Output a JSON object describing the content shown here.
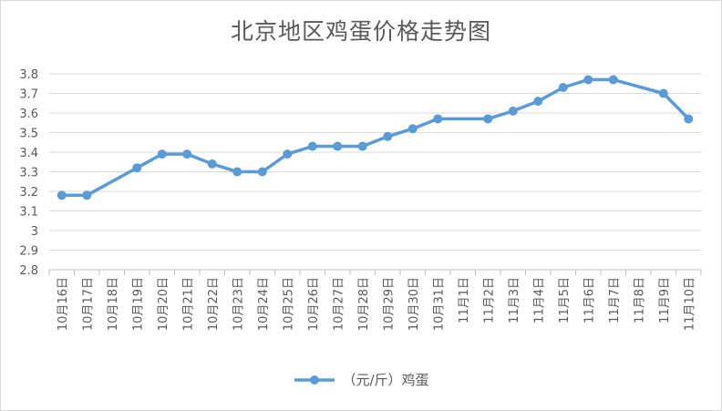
{
  "chart_data": {
    "type": "line",
    "title": "北京地区鸡蛋价格走势图",
    "xlabel": "",
    "ylabel": "",
    "categories": [
      "10月16日",
      "10月17日",
      "10月18日",
      "10月19日",
      "10月20日",
      "10月21日",
      "10月22日",
      "10月23日",
      "10月24日",
      "10月25日",
      "10月26日",
      "10月27日",
      "10月28日",
      "10月29日",
      "10月30日",
      "10月31日",
      "11月1日",
      "11月2日",
      "11月3日",
      "11月4日",
      "11月5日",
      "11月6日",
      "11月7日",
      "11月8日",
      "11月9日",
      "11月10日"
    ],
    "series": [
      {
        "name": "（元/斤）鸡蛋",
        "color": "#5b9bd5",
        "values": [
          3.18,
          3.18,
          null,
          3.32,
          3.39,
          3.39,
          3.34,
          3.3,
          3.3,
          3.39,
          3.43,
          3.43,
          3.43,
          3.48,
          3.52,
          3.57,
          null,
          3.57,
          3.61,
          3.66,
          3.73,
          3.77,
          3.77,
          null,
          3.7,
          3.57
        ]
      }
    ],
    "ylim": [
      2.8,
      3.8
    ],
    "yticks": [
      "2.8",
      "2.9",
      "3",
      "3.1",
      "3.2",
      "3.3",
      "3.4",
      "3.5",
      "3.6",
      "3.7",
      "3.8"
    ],
    "grid": true,
    "legend": "bottom"
  }
}
